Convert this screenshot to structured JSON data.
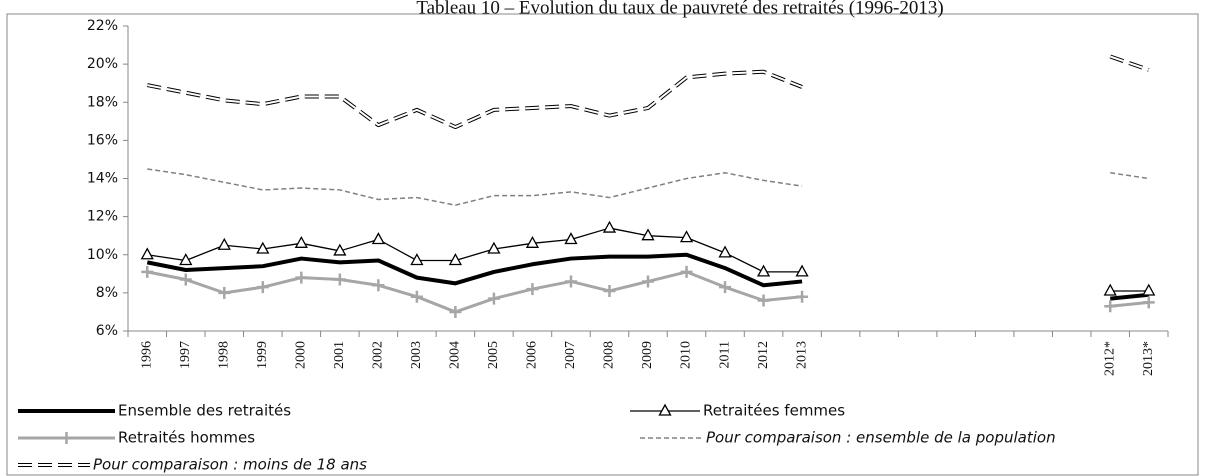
{
  "chart_data": {
    "type": "line",
    "title": "Tableau 10 – Évolution du taux de pauvreté des retraités (1996-2013)",
    "categories": [
      "1996",
      "1997",
      "1998",
      "1999",
      "2000",
      "2001",
      "2002",
      "2003",
      "2004",
      "2005",
      "2006",
      "2007",
      "2008",
      "2009",
      "2010",
      "2011",
      "2012",
      "2013",
      null,
      null,
      null,
      null,
      null,
      null,
      null,
      "2012*",
      "2013*"
    ],
    "ylim": [
      6,
      22
    ],
    "yticks": [
      {
        "value": 6,
        "label": "6%"
      },
      {
        "value": 8,
        "label": "8%"
      },
      {
        "value": 10,
        "label": "10%"
      },
      {
        "value": 12,
        "label": "12%"
      },
      {
        "value": 14,
        "label": "14%"
      },
      {
        "value": 16,
        "label": "16%"
      },
      {
        "value": 18,
        "label": "18%"
      },
      {
        "value": 20,
        "label": "20%"
      },
      {
        "value": 22,
        "label": "22%"
      }
    ],
    "grid": false,
    "series": [
      {
        "name": "Ensemble des retraités",
        "color": "#000000",
        "width": 4,
        "style": "solid",
        "marker": "none",
        "italic": false,
        "values": [
          9.6,
          9.2,
          9.3,
          9.4,
          9.8,
          9.6,
          9.7,
          8.8,
          8.5,
          9.1,
          9.5,
          9.8,
          9.9,
          9.9,
          10.0,
          9.3,
          8.4,
          8.6,
          null,
          null,
          null,
          null,
          null,
          null,
          null,
          7.7,
          7.9
        ]
      },
      {
        "name": "Retraitées femmes",
        "color": "#000000",
        "width": 1.3,
        "style": "solid",
        "marker": "triangle",
        "italic": false,
        "values": [
          10.0,
          9.7,
          10.5,
          10.3,
          10.6,
          10.2,
          10.8,
          9.7,
          9.7,
          10.3,
          10.6,
          10.8,
          11.4,
          11.0,
          10.9,
          10.1,
          9.1,
          9.1,
          null,
          null,
          null,
          null,
          null,
          null,
          null,
          8.1,
          8.1
        ]
      },
      {
        "name": "Retraités hommes",
        "color": "#a6a6a6",
        "width": 3,
        "style": "solid",
        "marker": "plus",
        "italic": false,
        "values": [
          9.1,
          8.7,
          8.0,
          8.3,
          8.8,
          8.7,
          8.4,
          7.8,
          7.0,
          7.7,
          8.2,
          8.6,
          8.1,
          8.6,
          9.1,
          8.3,
          7.6,
          7.8,
          null,
          null,
          null,
          null,
          null,
          null,
          null,
          7.3,
          7.5
        ]
      },
      {
        "name": "Pour comparaison : ensemble de la population",
        "color": "#808080",
        "width": 1.5,
        "style": "dashed",
        "marker": "none",
        "italic": true,
        "values": [
          14.5,
          14.2,
          13.8,
          13.4,
          13.5,
          13.4,
          12.9,
          13.0,
          12.6,
          13.1,
          13.1,
          13.3,
          13.0,
          13.5,
          14.0,
          14.3,
          13.9,
          13.6,
          null,
          null,
          null,
          null,
          null,
          null,
          null,
          14.3,
          14.0
        ]
      },
      {
        "name": "Pour comparaison : moins de 18 ans",
        "color": "#000000",
        "width": 4,
        "style": "double-dashed",
        "marker": "none",
        "italic": true,
        "values": [
          18.9,
          18.5,
          18.1,
          17.9,
          18.3,
          18.3,
          16.8,
          17.6,
          16.7,
          17.6,
          17.7,
          17.8,
          17.3,
          17.7,
          19.3,
          19.5,
          19.6,
          18.8,
          null,
          null,
          null,
          null,
          null,
          null,
          null,
          20.4,
          19.7
        ]
      }
    ]
  }
}
